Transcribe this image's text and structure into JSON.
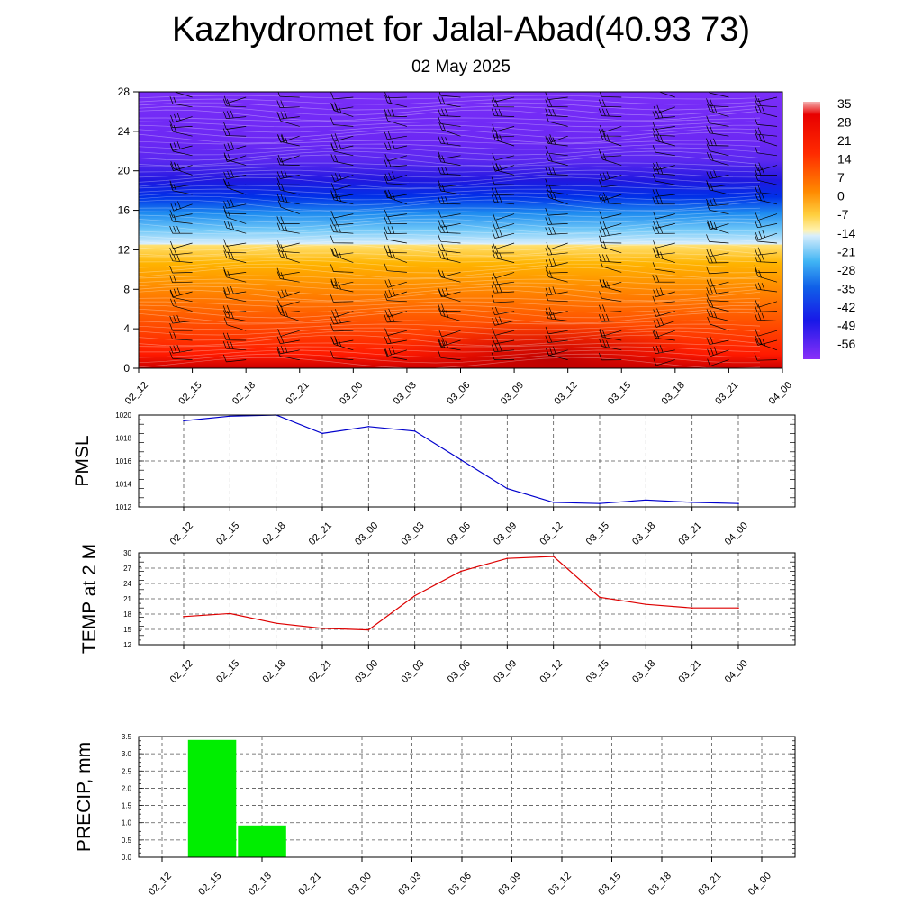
{
  "header": {
    "title": "Kazhydromet for Jalal-Abad(40.93 73)",
    "date": "02 May 2025"
  },
  "colors": {
    "pmsl_line": "#0000cc",
    "temp_line": "#dd0000",
    "precip_bar": "#00ee00"
  },
  "chart_data": [
    {
      "type": "heatmap",
      "name": "temperature-wind-cross-section",
      "x": [
        "02_12",
        "02_15",
        "02_18",
        "02_21",
        "03_00",
        "03_03",
        "03_06",
        "03_09",
        "03_12",
        "03_15",
        "03_18",
        "03_21",
        "04_00"
      ],
      "y_ticks": [
        0,
        4,
        8,
        12,
        16,
        20,
        24,
        28
      ],
      "ylim": [
        0,
        28
      ],
      "colorbar_labels": [
        "35",
        "28",
        "21",
        "14",
        "7",
        "0",
        "-7",
        "-14",
        "-21",
        "-28",
        "-35",
        "-42",
        "-49",
        "-56"
      ],
      "overlay": "wind barbs"
    },
    {
      "type": "line",
      "name": "pmsl",
      "ylabel": "PMSL",
      "x": [
        "02_12",
        "02_15",
        "02_18",
        "02_21",
        "03_00",
        "03_03",
        "03_06",
        "03_09",
        "03_12",
        "03_15",
        "03_18",
        "03_21",
        "04_00"
      ],
      "values": [
        1019.5,
        1019.9,
        1020.0,
        1018.4,
        1019.0,
        1018.6,
        1016.1,
        1013.6,
        1012.4,
        1012.3,
        1012.6,
        1012.4,
        1012.3
      ],
      "ylim": [
        1012,
        1020
      ],
      "y_ticks": [
        1012,
        1014,
        1016,
        1018,
        1020
      ],
      "grid": true
    },
    {
      "type": "line",
      "name": "temp2m",
      "ylabel": "TEMP at 2 M",
      "x": [
        "02_12",
        "02_15",
        "02_18",
        "02_21",
        "03_00",
        "03_03",
        "03_06",
        "03_09",
        "03_12",
        "03_15",
        "03_18",
        "03_21",
        "04_00"
      ],
      "values": [
        17.5,
        18.1,
        16.2,
        15.2,
        14.9,
        21.6,
        26.4,
        28.9,
        29.3,
        21.3,
        19.9,
        19.2,
        19.2
      ],
      "ylim": [
        12,
        30
      ],
      "y_ticks": [
        12,
        15,
        18,
        21,
        24,
        27,
        30
      ],
      "grid": true
    },
    {
      "type": "bar",
      "name": "precip",
      "ylabel": "PRECIP, mm",
      "x": [
        "02_12",
        "02_15",
        "02_18",
        "02_21",
        "03_00",
        "03_03",
        "03_06",
        "03_09",
        "03_12",
        "03_15",
        "03_18",
        "03_21",
        "04_00"
      ],
      "values": [
        0,
        3.4,
        0.92,
        0,
        0,
        0,
        0,
        0,
        0,
        0,
        0,
        0,
        0
      ],
      "ylim": [
        0,
        3.5
      ],
      "y_ticks": [
        "0.0",
        "0.5",
        "1.0",
        "1.5",
        "2.0",
        "2.5",
        "3.0",
        "3.5"
      ],
      "grid": true
    }
  ]
}
